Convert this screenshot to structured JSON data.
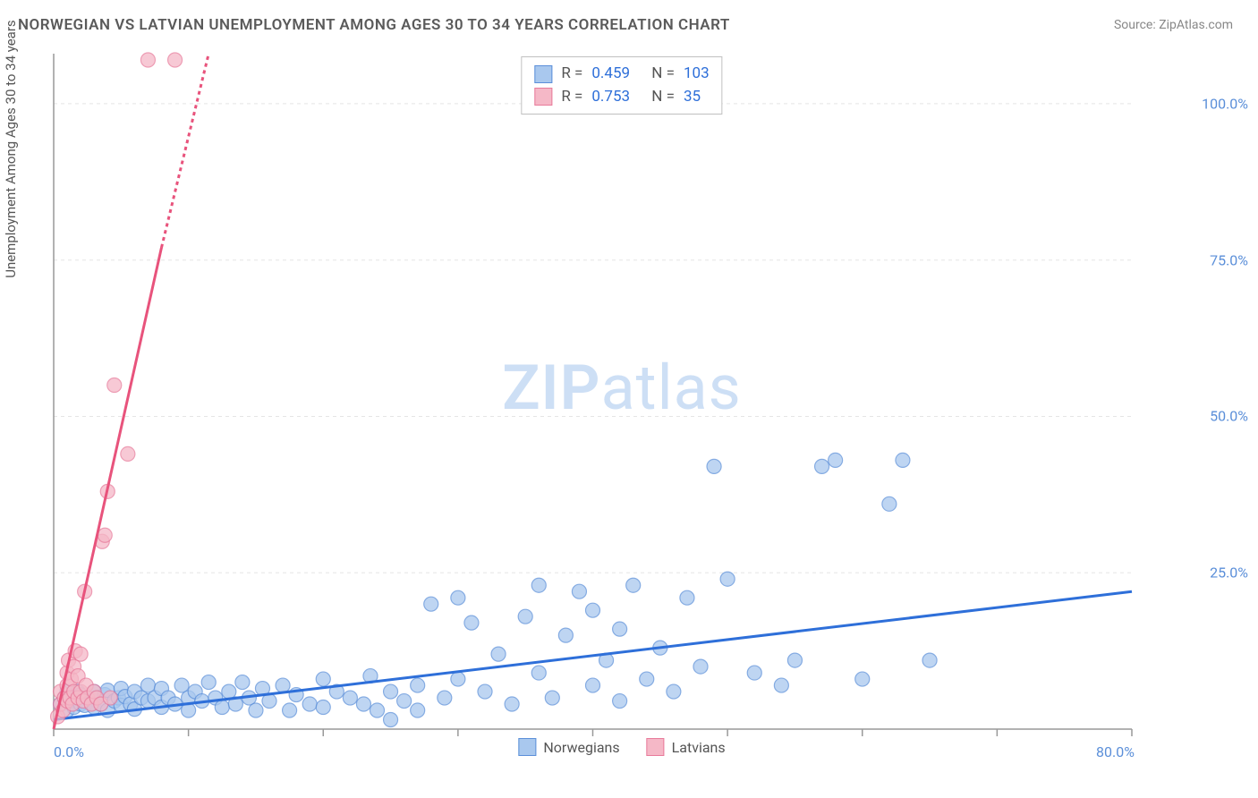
{
  "title": "NORWEGIAN VS LATVIAN UNEMPLOYMENT AMONG AGES 30 TO 34 YEARS CORRELATION CHART",
  "source_prefix": "Source: ",
  "source_name": "ZipAtlas.com",
  "y_axis_label": "Unemployment Among Ages 30 to 34 years",
  "watermark_bold": "ZIP",
  "watermark_light": "atlas",
  "chart": {
    "type": "scatter",
    "xlim": [
      0,
      80
    ],
    "ylim": [
      0,
      108
    ],
    "x_ticks_major": [
      0,
      10,
      20,
      30,
      40,
      50,
      60,
      70,
      80
    ],
    "x_tick_labels": [
      {
        "pos": 0,
        "label": "0.0%"
      },
      {
        "pos": 80,
        "label": "80.0%"
      }
    ],
    "y_ticks": [
      25,
      50,
      75,
      100
    ],
    "y_tick_labels": [
      {
        "pos": 25,
        "label": "25.0%"
      },
      {
        "pos": 50,
        "label": "50.0%"
      },
      {
        "pos": 75,
        "label": "75.0%"
      },
      {
        "pos": 100,
        "label": "100.0%"
      }
    ],
    "grid_color": "#e5e5e5",
    "axis_color": "#999999",
    "background_color": "#ffffff",
    "series": [
      {
        "name": "Norwegians",
        "marker_fill": "#a9c8ee",
        "marker_stroke": "#5b8fd9",
        "marker_radius": 8,
        "marker_opacity": 0.75,
        "trend_color": "#2e6fd9",
        "trend_width": 3,
        "trend_dash": "none",
        "trend": {
          "x1": 0,
          "y1": 1.5,
          "x2": 80,
          "y2": 22
        },
        "R": "0.459",
        "N": "103",
        "points": [
          [
            0.5,
            4
          ],
          [
            0.8,
            5
          ],
          [
            1,
            3
          ],
          [
            1,
            6
          ],
          [
            1.2,
            4.5
          ],
          [
            1.5,
            5
          ],
          [
            1.5,
            3.5
          ],
          [
            1.8,
            6
          ],
          [
            2,
            4
          ],
          [
            2,
            5.5
          ],
          [
            2.3,
            3.8
          ],
          [
            2.5,
            5
          ],
          [
            2.8,
            4.2
          ],
          [
            3,
            6
          ],
          [
            3,
            3.5
          ],
          [
            3.2,
            5
          ],
          [
            3.5,
            4
          ],
          [
            3.8,
            5.5
          ],
          [
            4,
            3
          ],
          [
            4,
            6.2
          ],
          [
            4.5,
            4.5
          ],
          [
            4.8,
            5
          ],
          [
            5,
            6.5
          ],
          [
            5,
            3.8
          ],
          [
            5.3,
            5.2
          ],
          [
            5.7,
            4
          ],
          [
            6,
            6
          ],
          [
            6,
            3.2
          ],
          [
            6.5,
            5
          ],
          [
            7,
            4.5
          ],
          [
            7,
            7
          ],
          [
            7.5,
            5
          ],
          [
            8,
            3.5
          ],
          [
            8,
            6.5
          ],
          [
            8.5,
            5
          ],
          [
            9,
            4
          ],
          [
            9.5,
            7
          ],
          [
            10,
            5
          ],
          [
            10,
            3
          ],
          [
            10.5,
            6
          ],
          [
            11,
            4.5
          ],
          [
            11.5,
            7.5
          ],
          [
            12,
            5
          ],
          [
            12.5,
            3.5
          ],
          [
            13,
            6
          ],
          [
            13.5,
            4
          ],
          [
            14,
            7.5
          ],
          [
            14.5,
            5
          ],
          [
            15,
            3
          ],
          [
            15.5,
            6.5
          ],
          [
            16,
            4.5
          ],
          [
            17,
            7
          ],
          [
            17.5,
            3
          ],
          [
            18,
            5.5
          ],
          [
            19,
            4
          ],
          [
            20,
            8
          ],
          [
            20,
            3.5
          ],
          [
            21,
            6
          ],
          [
            22,
            5
          ],
          [
            23,
            4
          ],
          [
            23.5,
            8.5
          ],
          [
            24,
            3
          ],
          [
            25,
            6
          ],
          [
            25,
            1.5
          ],
          [
            26,
            4.5
          ],
          [
            27,
            7
          ],
          [
            27,
            3
          ],
          [
            28,
            20
          ],
          [
            29,
            5
          ],
          [
            30,
            21
          ],
          [
            30,
            8
          ],
          [
            31,
            17
          ],
          [
            32,
            6
          ],
          [
            33,
            12
          ],
          [
            34,
            4
          ],
          [
            35,
            18
          ],
          [
            36,
            9
          ],
          [
            36,
            23
          ],
          [
            37,
            5
          ],
          [
            38,
            15
          ],
          [
            39,
            22
          ],
          [
            40,
            7
          ],
          [
            40,
            19
          ],
          [
            41,
            11
          ],
          [
            42,
            4.5
          ],
          [
            42,
            16
          ],
          [
            43,
            23
          ],
          [
            44,
            8
          ],
          [
            45,
            13
          ],
          [
            46,
            6
          ],
          [
            47,
            21
          ],
          [
            48,
            10
          ],
          [
            49,
            42
          ],
          [
            50,
            24
          ],
          [
            52,
            9
          ],
          [
            54,
            7
          ],
          [
            55,
            11
          ],
          [
            57,
            42
          ],
          [
            58,
            43
          ],
          [
            60,
            8
          ],
          [
            62,
            36
          ],
          [
            63,
            43
          ],
          [
            65,
            11
          ]
        ]
      },
      {
        "name": "Latvians",
        "marker_fill": "#f5b8c7",
        "marker_stroke": "#e87b9b",
        "marker_radius": 8,
        "marker_opacity": 0.75,
        "trend_color": "#e8537c",
        "trend_width": 3,
        "trend_dash": "none",
        "trend_dashed_ext": "4,4",
        "trend": {
          "x1": 0,
          "y1": 0,
          "x2": 8,
          "y2": 77
        },
        "trend_ext": {
          "x1": 8,
          "y1": 77,
          "x2": 11.5,
          "y2": 108
        },
        "R": "0.753",
        "N": "35",
        "points": [
          [
            0.3,
            2
          ],
          [
            0.5,
            4
          ],
          [
            0.5,
            6
          ],
          [
            0.7,
            3
          ],
          [
            0.8,
            5
          ],
          [
            1,
            4.5
          ],
          [
            1,
            7
          ],
          [
            1,
            9
          ],
          [
            1.1,
            11
          ],
          [
            1.2,
            5
          ],
          [
            1.3,
            8
          ],
          [
            1.4,
            4
          ],
          [
            1.5,
            6
          ],
          [
            1.5,
            10
          ],
          [
            1.6,
            12.5
          ],
          [
            1.8,
            5
          ],
          [
            1.8,
            8.5
          ],
          [
            2,
            6
          ],
          [
            2,
            12
          ],
          [
            2.2,
            4.5
          ],
          [
            2.3,
            22
          ],
          [
            2.4,
            7
          ],
          [
            2.5,
            5
          ],
          [
            2.8,
            4
          ],
          [
            3,
            6
          ],
          [
            3.2,
            5
          ],
          [
            3.6,
            30
          ],
          [
            3.8,
            31
          ],
          [
            3.5,
            4
          ],
          [
            4,
            38
          ],
          [
            4.2,
            5
          ],
          [
            5.5,
            44
          ],
          [
            4.5,
            55
          ],
          [
            7,
            107
          ],
          [
            9,
            107
          ]
        ]
      }
    ]
  },
  "legend": {
    "items": [
      {
        "label": "Norwegians",
        "fill": "#a9c8ee",
        "stroke": "#5b8fd9"
      },
      {
        "label": "Latvians",
        "fill": "#f5b8c7",
        "stroke": "#e87b9b"
      }
    ]
  },
  "stats_box": [
    {
      "fill": "#a9c8ee",
      "stroke": "#5b8fd9",
      "r_label": "R =",
      "r_val": "0.459",
      "n_label": "N =",
      "n_val": "103"
    },
    {
      "fill": "#f5b8c7",
      "stroke": "#e87b9b",
      "r_label": "R =",
      "r_val": "0.753",
      "n_label": "N =",
      "n_val": " 35"
    }
  ]
}
